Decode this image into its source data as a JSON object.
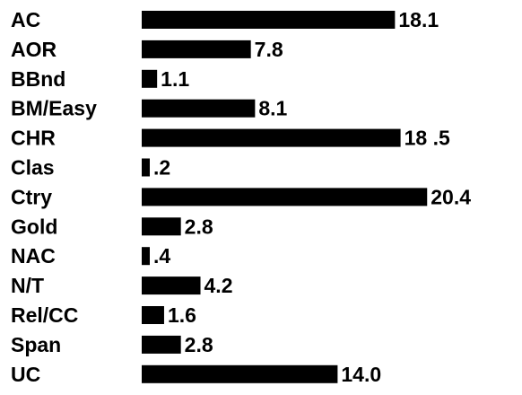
{
  "chart_data": {
    "type": "bar",
    "orientation": "horizontal",
    "categories": [
      "AC",
      "AOR",
      "BBnd",
      "BM/Easy",
      "CHR",
      "Clas",
      "Ctry",
      "Gold",
      "NAC",
      "N/T",
      "Rel/CC",
      "Span",
      "UC"
    ],
    "values": [
      18.1,
      7.8,
      1.1,
      8.1,
      18.5,
      0.2,
      20.4,
      2.8,
      0.4,
      4.2,
      1.6,
      2.8,
      14.0
    ],
    "value_labels": [
      "18.1",
      "7.8",
      "1.1",
      "8.1",
      "18 .5",
      ".2",
      "20.4",
      "2.8",
      ".4",
      "4.2",
      "1.6",
      "2.8",
      "14.0"
    ],
    "bar_color": "#000000",
    "grid": false,
    "legend": "none"
  }
}
